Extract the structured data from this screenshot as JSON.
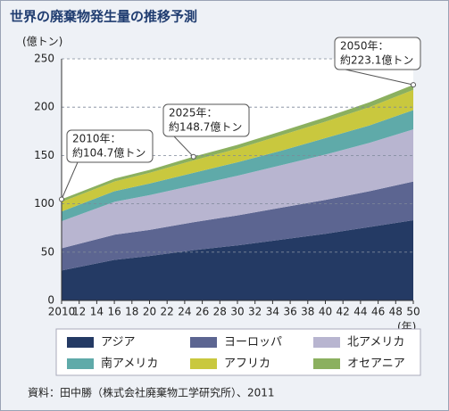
{
  "chart_data": {
    "type": "stacked-area",
    "title": "世界の廃棄物発生量の推移予測",
    "y_label": "(億トン)",
    "x_label": "(年)",
    "x": [
      2010,
      2016,
      2020,
      2025,
      2030,
      2035,
      2040,
      2045,
      2050
    ],
    "series": [
      {
        "name": "アジア",
        "color": "#243a64",
        "values": [
          31,
          42,
          46,
          52,
          57,
          63,
          69,
          76,
          83
        ]
      },
      {
        "name": "ヨーロッパ",
        "color": "#5c6591",
        "values": [
          23,
          26,
          27,
          29,
          31,
          33,
          35,
          37,
          40
        ]
      },
      {
        "name": "北アメリカ",
        "color": "#b8b5d0",
        "values": [
          28,
          34,
          36,
          38,
          41,
          44,
          47,
          50,
          54
        ]
      },
      {
        "name": "南アメリカ",
        "color": "#5faaa9",
        "values": [
          10,
          11,
          12,
          13,
          14,
          15,
          17,
          18,
          20
        ]
      },
      {
        "name": "アフリカ",
        "color": "#c9c83e",
        "values": [
          10,
          10,
          11,
          13,
          14,
          16,
          17,
          19,
          21
        ]
      },
      {
        "name": "オセアニア",
        "color": "#8bb05f",
        "values": [
          2.7,
          3,
          3,
          3.7,
          4,
          4,
          4.5,
          5,
          5.1
        ]
      }
    ],
    "xlim": [
      2010,
      2050
    ],
    "xticks": [
      2010,
      {
        "value": 2012,
        "label": "12"
      },
      {
        "value": 2014,
        "label": "14"
      },
      {
        "value": 2016,
        "label": "16"
      },
      {
        "value": 2018,
        "label": "18"
      },
      {
        "value": 2020,
        "label": "20"
      },
      {
        "value": 2022,
        "label": "22"
      },
      {
        "value": 2024,
        "label": "24"
      },
      {
        "value": 2026,
        "label": "26"
      },
      {
        "value": 2028,
        "label": "28"
      },
      {
        "value": 2030,
        "label": "30"
      },
      {
        "value": 2032,
        "label": "32"
      },
      {
        "value": 2034,
        "label": "34"
      },
      {
        "value": 2036,
        "label": "36"
      },
      {
        "value": 2038,
        "label": "38"
      },
      {
        "value": 2040,
        "label": "40"
      },
      {
        "value": 2042,
        "label": "42"
      },
      {
        "value": 2044,
        "label": "44"
      },
      {
        "value": 2046,
        "label": "46"
      },
      {
        "value": 2048,
        "label": "48"
      },
      {
        "value": 2050,
        "label": "50"
      }
    ],
    "ylim": [
      0,
      250
    ],
    "yticks": [
      0,
      50,
      100,
      150,
      200,
      250
    ],
    "grid": true,
    "annotations": [
      {
        "lines": [
          "2010年：",
          "約104.7億トン"
        ]
      },
      {
        "lines": [
          "2025年：",
          "約148.7億トン"
        ]
      },
      {
        "lines": [
          "2050年：",
          "約223.1億トン"
        ]
      }
    ],
    "source": "資料：田中勝（株式会社廃棄物工学研究所）、2011"
  }
}
